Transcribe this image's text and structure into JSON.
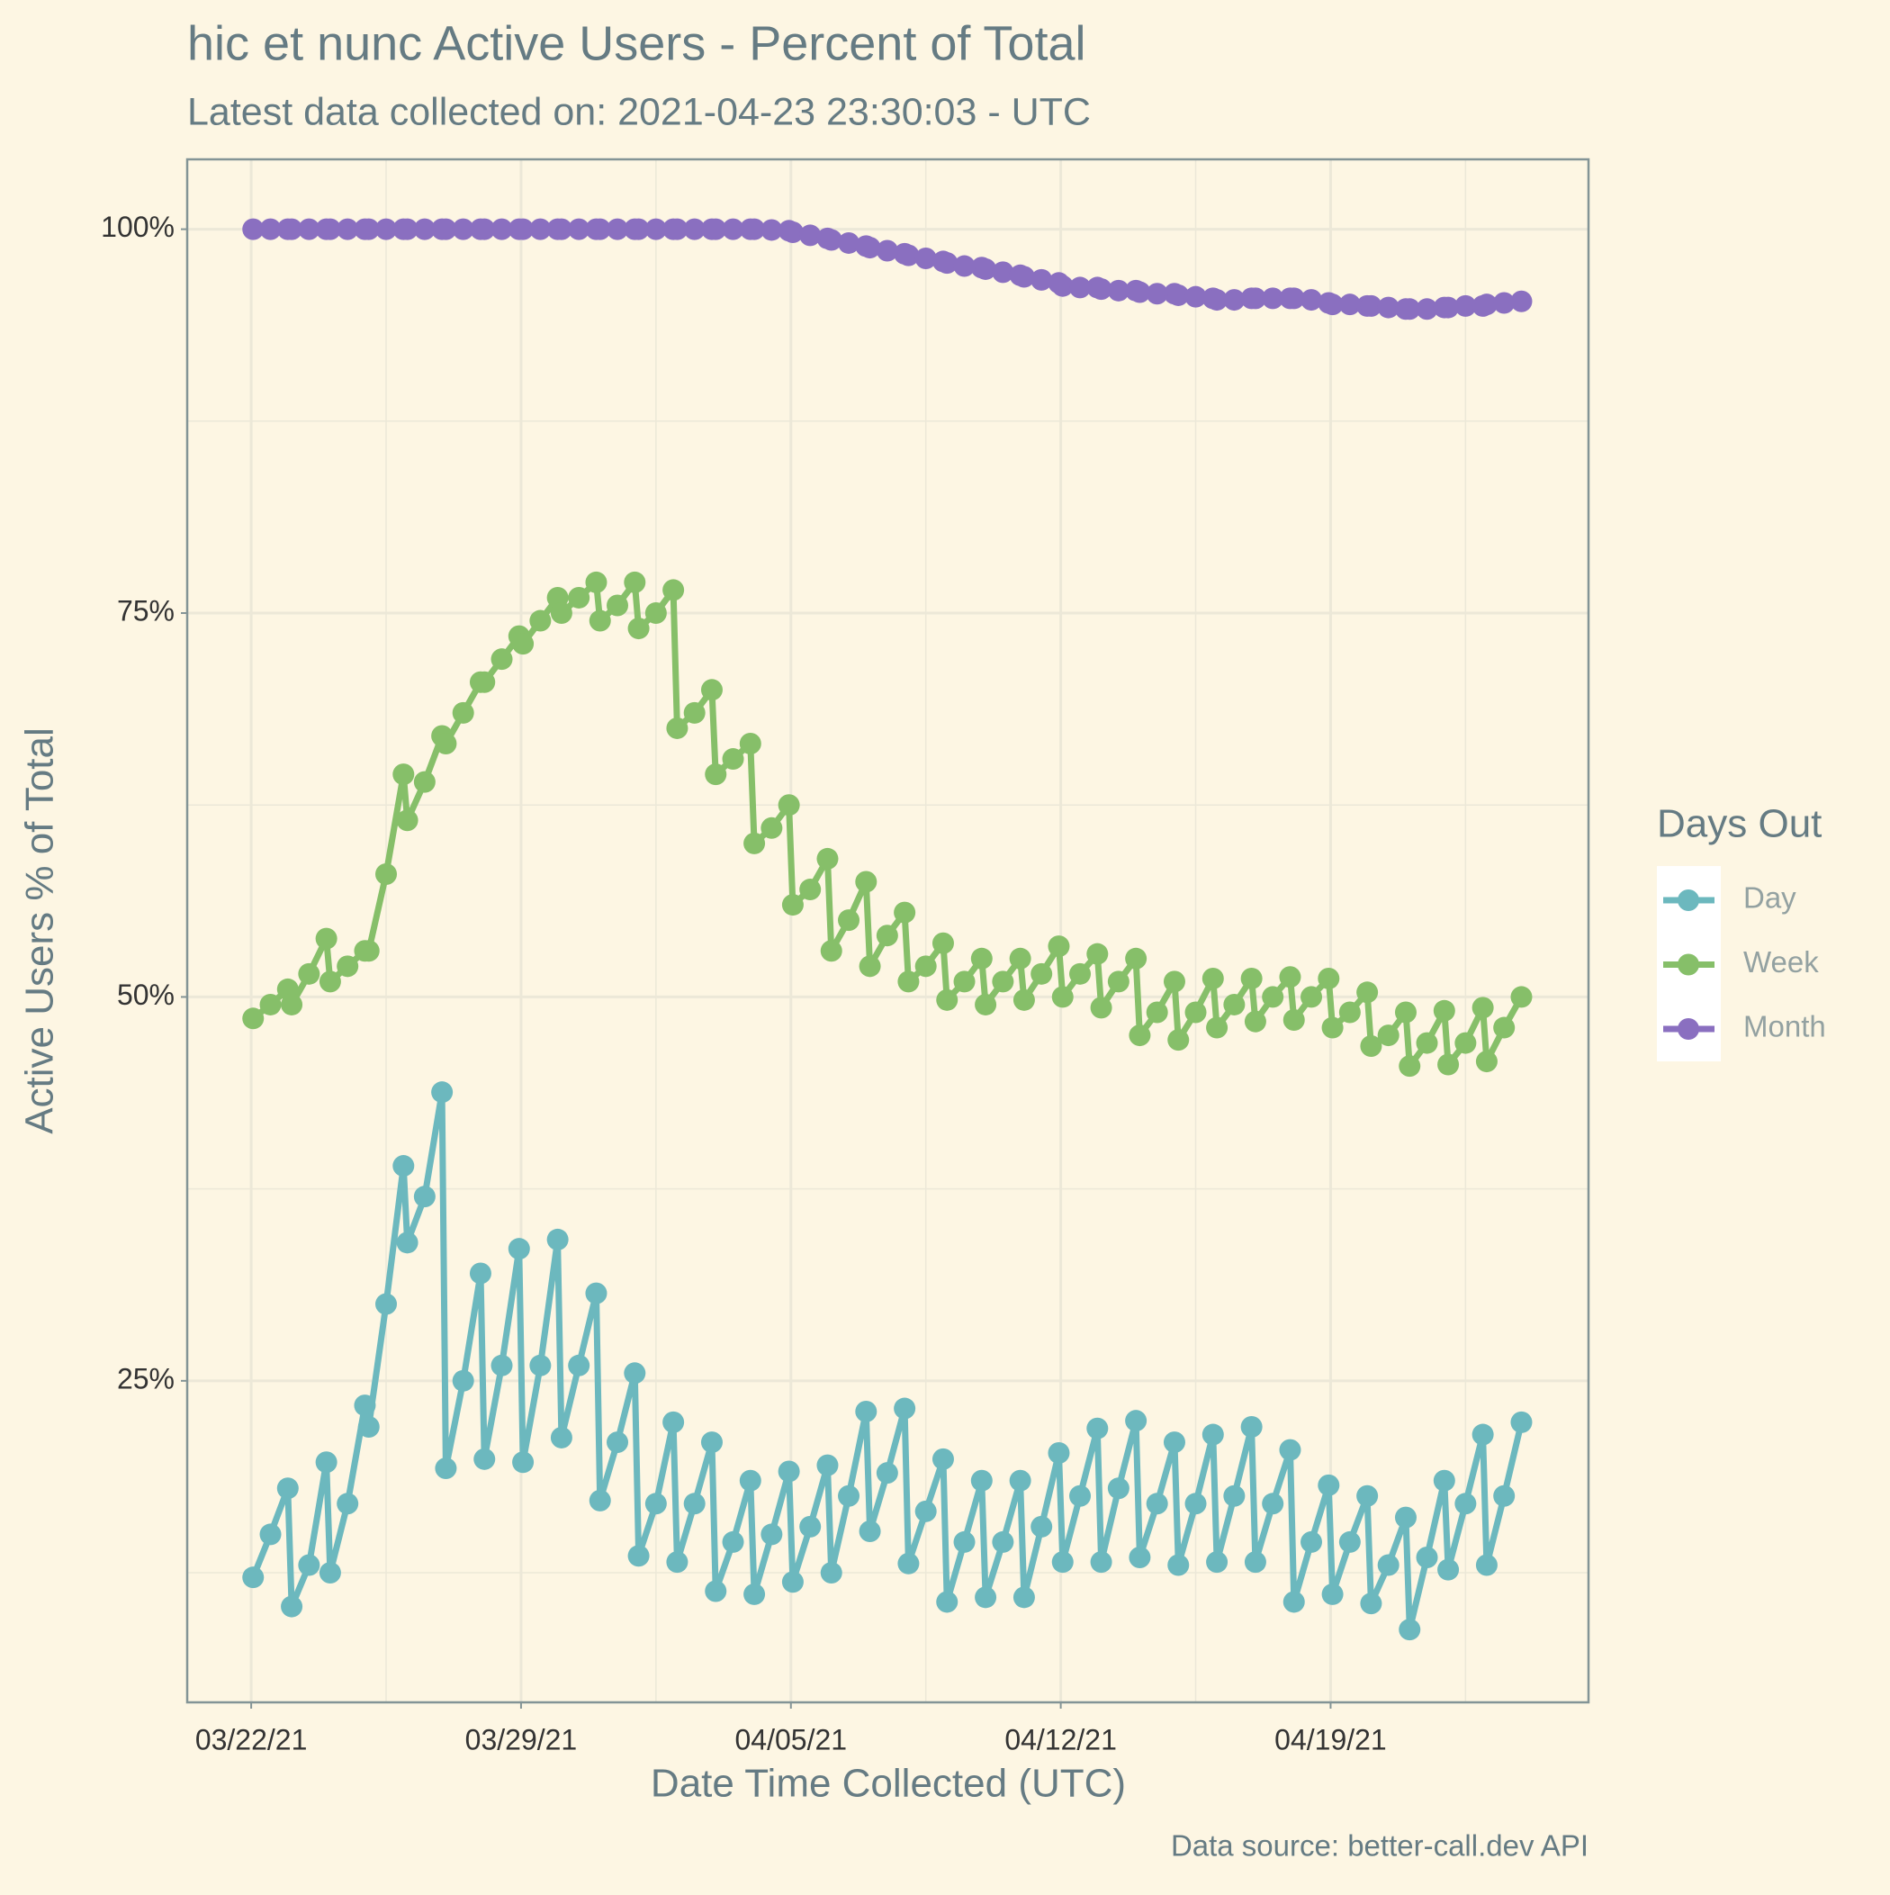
{
  "chart_data": {
    "type": "line",
    "title": "hic et nunc Active Users - Percent of Total",
    "subtitle": "Latest data collected on: 2021-04-23 23:30:03  - UTC",
    "xlabel": "Date Time Collected (UTC)",
    "ylabel": "Active Users % of Total",
    "caption": "Data source: better-call.dev API",
    "legend_title": "Days Out",
    "legend": "right",
    "grid": true,
    "xlim": [
      -1.66,
      34.69
    ],
    "xticks": [
      {
        "value": 0,
        "label": "03/22/21"
      },
      {
        "value": 7,
        "label": "03/29/21"
      },
      {
        "value": 14,
        "label": "04/05/21"
      },
      {
        "value": 21,
        "label": "04/12/21"
      },
      {
        "value": 28,
        "label": "04/19/21"
      }
    ],
    "ylim": [
      4.06,
      104.55
    ],
    "yticks": [
      {
        "value": 25,
        "label": "25%"
      },
      {
        "value": 50,
        "label": "50%"
      },
      {
        "value": 75,
        "label": "75%"
      },
      {
        "value": 100,
        "label": "100%"
      }
    ],
    "x": [
      0.05,
      0.5,
      0.95,
      1.05,
      1.5,
      1.95,
      2.05,
      2.5,
      2.95,
      3.05,
      3.5,
      3.95,
      4.05,
      4.5,
      4.95,
      5.05,
      5.5,
      5.95,
      6.05,
      6.5,
      6.95,
      7.05,
      7.5,
      7.95,
      8.05,
      8.5,
      8.95,
      9.05,
      9.5,
      9.95,
      10.05,
      10.5,
      10.95,
      11.05,
      11.5,
      11.95,
      12.05,
      12.5,
      12.95,
      13.05,
      13.5,
      13.95,
      14.05,
      14.5,
      14.95,
      15.05,
      15.5,
      15.95,
      16.05,
      16.5,
      16.95,
      17.05,
      17.5,
      17.95,
      18.05,
      18.5,
      18.95,
      19.05,
      19.5,
      19.95,
      20.05,
      20.5,
      20.95,
      21.05,
      21.5,
      21.95,
      22.05,
      22.5,
      22.95,
      23.05,
      23.5,
      23.95,
      24.05,
      24.5,
      24.95,
      25.05,
      25.5,
      25.95,
      26.05,
      26.5,
      26.95,
      27.05,
      27.5,
      27.95,
      28.05,
      28.5,
      28.95,
      29.05,
      29.5,
      29.95,
      30.05,
      30.5,
      30.95,
      31.05,
      31.5,
      31.95,
      32.05,
      32.5,
      32.95
    ],
    "series": [
      {
        "name": "Day",
        "color": "#6cb8be",
        "values": [
          12.2,
          15,
          18,
          10.3,
          13,
          19.7,
          12.5,
          17,
          23.4,
          22,
          30,
          39,
          34,
          37,
          43.8,
          19.3,
          25,
          32,
          19.9,
          26,
          33.6,
          19.7,
          26,
          34.2,
          21.3,
          26,
          30.7,
          17.2,
          21,
          25.5,
          13.6,
          17,
          22.3,
          13.2,
          17,
          21,
          11.3,
          14.5,
          18.5,
          11.1,
          15,
          19.1,
          11.9,
          15.5,
          19.5,
          12.5,
          17.5,
          23,
          15.2,
          19,
          23.2,
          13.1,
          16.5,
          19.9,
          10.6,
          14.5,
          18.5,
          10.9,
          14.5,
          18.5,
          10.9,
          15.5,
          20.3,
          13.2,
          17.5,
          21.9,
          13.2,
          18,
          22.4,
          13.5,
          17,
          21,
          13,
          17,
          21.5,
          13.2,
          17.5,
          22,
          13.2,
          17,
          20.5,
          10.6,
          14.5,
          18.2,
          11.1,
          14.5,
          17.5,
          10.5,
          13,
          16.1,
          8.8,
          13.5,
          18.5,
          12.7,
          17,
          21.5,
          13,
          17.5,
          22.3
        ]
      },
      {
        "name": "Week",
        "color": "#86bf69",
        "values": [
          48.6,
          49.5,
          50.5,
          49.5,
          51.5,
          53.8,
          51,
          52,
          53,
          53,
          58,
          64.5,
          61.5,
          64,
          67,
          66.5,
          68.5,
          70.5,
          70.5,
          72,
          73.5,
          73,
          74.5,
          76,
          75,
          76,
          77,
          74.5,
          75.5,
          77,
          74,
          75,
          76.5,
          67.5,
          68.5,
          70,
          64.5,
          65.5,
          66.5,
          60,
          61,
          62.5,
          56,
          57,
          59,
          53,
          55,
          57.5,
          52,
          54,
          55.5,
          51,
          52,
          53.5,
          49.8,
          51,
          52.5,
          49.5,
          51,
          52.5,
          49.8,
          51.5,
          53.3,
          50,
          51.5,
          52.8,
          49.3,
          51,
          52.5,
          47.5,
          49,
          51,
          47.2,
          49,
          51.2,
          48,
          49.5,
          51.2,
          48.4,
          50,
          51.3,
          48.5,
          50,
          51.2,
          48,
          49,
          50.3,
          46.8,
          47.5,
          49,
          45.5,
          47,
          49.1,
          45.6,
          47,
          49.3,
          45.8,
          48,
          50
        ]
      },
      {
        "name": "Month",
        "color": "#8a6fc0",
        "values": [
          100,
          100,
          100,
          100,
          100,
          100,
          100,
          100,
          100,
          100,
          100,
          100,
          100,
          100,
          100,
          100,
          100,
          100,
          100,
          100,
          100,
          100,
          100,
          100,
          100,
          100,
          100,
          100,
          100,
          100,
          100,
          100,
          100,
          100,
          100,
          100,
          100,
          100,
          100,
          100,
          99.95,
          99.9,
          99.8,
          99.6,
          99.4,
          99.3,
          99.1,
          98.9,
          98.8,
          98.6,
          98.4,
          98.3,
          98.1,
          97.9,
          97.8,
          97.6,
          97.5,
          97.4,
          97.2,
          97,
          96.9,
          96.7,
          96.5,
          96.3,
          96.2,
          96.2,
          96.1,
          96,
          96,
          95.9,
          95.8,
          95.8,
          95.7,
          95.6,
          95.5,
          95.4,
          95.4,
          95.5,
          95.5,
          95.5,
          95.5,
          95.5,
          95.4,
          95.2,
          95.1,
          95.1,
          95,
          95,
          94.9,
          94.8,
          94.8,
          94.8,
          94.9,
          94.9,
          95,
          95,
          95.1,
          95.2,
          95.3
        ]
      }
    ]
  }
}
